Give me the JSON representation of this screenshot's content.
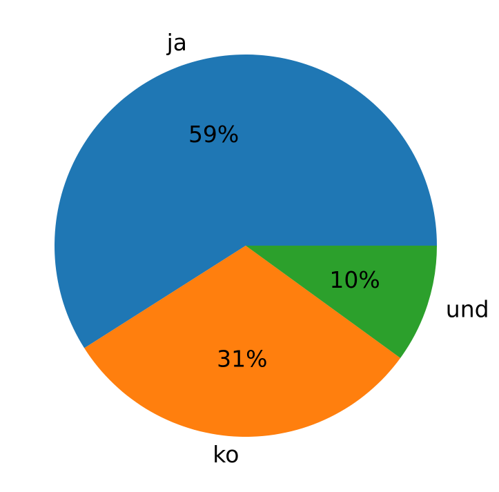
{
  "chart_data": {
    "type": "pie",
    "categories": [
      "ja",
      "ko",
      "und"
    ],
    "values": [
      59,
      31,
      10
    ],
    "value_labels": [
      "59%",
      "31%",
      "10%"
    ],
    "colors": [
      "#1f77b4",
      "#ff7f0e",
      "#2ca02c"
    ]
  }
}
